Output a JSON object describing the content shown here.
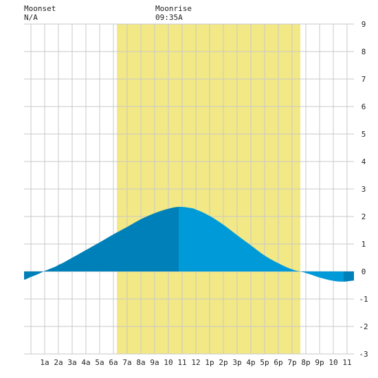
{
  "moon": {
    "moonset_label": "Moonset",
    "moonset_value": "N/A",
    "moonrise_label": "Moonrise",
    "moonrise_value": "09:35A"
  },
  "colors": {
    "daylight": "#f2e885",
    "night": "#ffffff",
    "grid": "#c8c8c8",
    "tide_rising": "#0080b8",
    "tide_falling": "#009ad8",
    "tide_falling_dark": "#0080b8"
  },
  "chart_data": {
    "type": "area",
    "title": "",
    "xlabel": "",
    "ylabel": "",
    "xlim": [
      -0.5,
      23.5
    ],
    "ylim": [
      -3,
      9
    ],
    "y_ticks": [
      -3,
      -2,
      -1,
      0,
      1,
      2,
      3,
      4,
      5,
      6,
      7,
      8,
      9
    ],
    "x_ticks": [
      {
        "hour": 1,
        "label": "1a"
      },
      {
        "hour": 2,
        "label": "2a"
      },
      {
        "hour": 3,
        "label": "3a"
      },
      {
        "hour": 4,
        "label": "4a"
      },
      {
        "hour": 5,
        "label": "5a"
      },
      {
        "hour": 6,
        "label": "6a"
      },
      {
        "hour": 7,
        "label": "7a"
      },
      {
        "hour": 8,
        "label": "8a"
      },
      {
        "hour": 9,
        "label": "9a"
      },
      {
        "hour": 10,
        "label": "10"
      },
      {
        "hour": 11,
        "label": "11"
      },
      {
        "hour": 12,
        "label": "12"
      },
      {
        "hour": 13,
        "label": "1p"
      },
      {
        "hour": 14,
        "label": "2p"
      },
      {
        "hour": 15,
        "label": "3p"
      },
      {
        "hour": 16,
        "label": "4p"
      },
      {
        "hour": 17,
        "label": "5p"
      },
      {
        "hour": 18,
        "label": "6p"
      },
      {
        "hour": 19,
        "label": "7p"
      },
      {
        "hour": 20,
        "label": "8p"
      },
      {
        "hour": 21,
        "label": "9p"
      },
      {
        "hour": 22,
        "label": "10"
      },
      {
        "hour": 23,
        "label": "11"
      }
    ],
    "daylight_hours": [
      6.25,
      19.6
    ],
    "series": [
      {
        "x": [
          -0.5,
          0,
          0.5,
          1,
          1.5,
          2,
          3,
          4,
          5,
          6,
          7,
          8,
          9,
          10,
          10.75,
          11.5,
          12,
          13,
          14,
          15,
          16,
          17,
          18,
          19,
          19.6,
          20,
          21,
          22,
          22.75,
          23.5
        ],
        "y": [
          -0.3,
          -0.2,
          -0.1,
          0.02,
          0.12,
          0.24,
          0.5,
          0.78,
          1.06,
          1.35,
          1.62,
          1.9,
          2.12,
          2.28,
          2.35,
          2.32,
          2.25,
          2.02,
          1.7,
          1.32,
          0.95,
          0.58,
          0.3,
          0.08,
          0.0,
          -0.06,
          -0.22,
          -0.34,
          -0.37,
          -0.33
        ]
      }
    ],
    "high_tide_hour": 10.75
  }
}
